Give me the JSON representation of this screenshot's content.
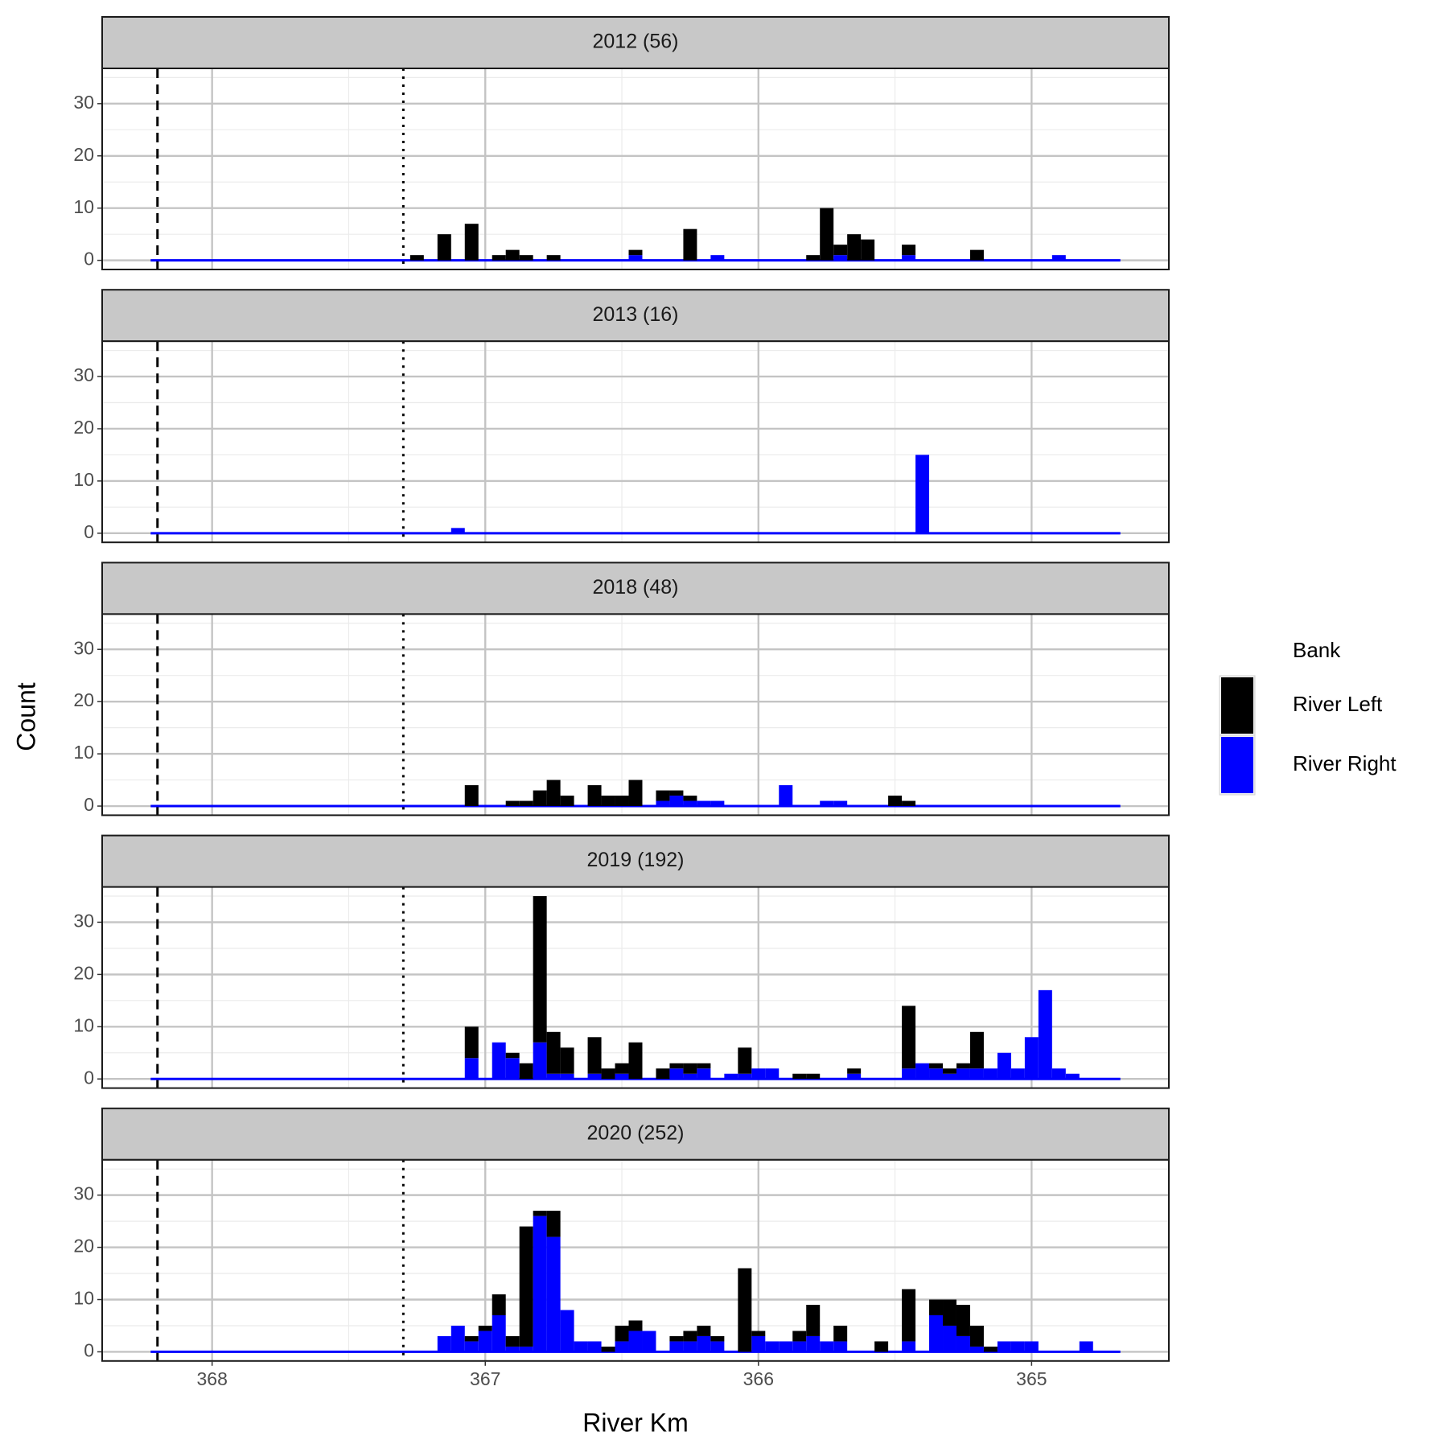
{
  "chart_data": {
    "type": "histogram",
    "x_label": "River Km",
    "y_label": "Count",
    "legend_title": "Bank",
    "xlim": [
      368.4025,
      364.4975
    ],
    "xticks": [
      368,
      367,
      366,
      365
    ],
    "ylim": [
      -1.75,
      36.75
    ],
    "yticks": [
      0,
      10,
      20,
      30
    ],
    "grid": true,
    "minor_grid": true,
    "vlines": [
      {
        "value": 368.2,
        "style": "dashed"
      },
      {
        "value": 367.3,
        "style": "dotted"
      }
    ],
    "bins": [
      368.225,
      368.175,
      368.125,
      368.075,
      368.025,
      367.975,
      367.925,
      367.875,
      367.825,
      367.775,
      367.725,
      367.675,
      367.625,
      367.575,
      367.525,
      367.475,
      367.425,
      367.375,
      367.325,
      367.275,
      367.225,
      367.175,
      367.125,
      367.075,
      367.025,
      366.975,
      366.925,
      366.875,
      366.825,
      366.775,
      366.725,
      366.675,
      366.625,
      366.575,
      366.525,
      366.475,
      366.425,
      366.375,
      366.325,
      366.275,
      366.225,
      366.175,
      366.125,
      366.075,
      366.025,
      365.975,
      365.925,
      365.875,
      365.825,
      365.775,
      365.725,
      365.675,
      365.625,
      365.575,
      365.525,
      365.475,
      365.425,
      365.375,
      365.325,
      365.275,
      365.225,
      365.175,
      365.125,
      365.075,
      365.025,
      364.975,
      364.925,
      364.875,
      364.825,
      364.775,
      364.725,
      364.675
    ],
    "facets": [
      {
        "title": "2012 (56)",
        "series": [
          {
            "name": "River Left",
            "color": "#000000",
            "values": [
              0,
              0,
              0,
              0,
              0,
              0,
              0,
              0,
              0,
              0,
              0,
              0,
              0,
              0,
              0,
              0,
              0,
              0,
              0,
              1,
              0,
              5,
              0,
              7,
              0,
              1,
              2,
              1,
              0,
              1,
              0,
              0,
              0,
              0,
              0,
              1,
              0,
              0,
              0,
              6,
              0,
              0,
              0,
              0,
              0,
              0,
              0,
              0,
              1,
              10,
              2,
              5,
              4,
              0,
              0,
              2,
              0,
              0,
              0,
              0,
              2,
              0,
              0,
              0,
              0,
              0,
              0,
              0,
              0,
              0,
              0
            ]
          },
          {
            "name": "River Right",
            "color": "#0000ff",
            "values": [
              0,
              0,
              0,
              0,
              0,
              0,
              0,
              0,
              0,
              0,
              0,
              0,
              0,
              0,
              0,
              0,
              0,
              0,
              0,
              0,
              0,
              0,
              0,
              0,
              0,
              0,
              0,
              0,
              0,
              0,
              0,
              0,
              0,
              0,
              0,
              1,
              0,
              0,
              0,
              0,
              0,
              1,
              0,
              0,
              0,
              0,
              0,
              0,
              0,
              0,
              1,
              0,
              0,
              0,
              0,
              1,
              0,
              0,
              0,
              0,
              0,
              0,
              0,
              0,
              0,
              0,
              1,
              0,
              0,
              0,
              0
            ]
          }
        ]
      },
      {
        "title": "2013 (16)",
        "series": [
          {
            "name": "River Left",
            "color": "#000000",
            "values": [
              0,
              0,
              0,
              0,
              0,
              0,
              0,
              0,
              0,
              0,
              0,
              0,
              0,
              0,
              0,
              0,
              0,
              0,
              0,
              0,
              0,
              0,
              0,
              0,
              0,
              0,
              0,
              0,
              0,
              0,
              0,
              0,
              0,
              0,
              0,
              0,
              0,
              0,
              0,
              0,
              0,
              0,
              0,
              0,
              0,
              0,
              0,
              0,
              0,
              0,
              0,
              0,
              0,
              0,
              0,
              0,
              0,
              0,
              0,
              0,
              0,
              0,
              0,
              0,
              0,
              0,
              0,
              0,
              0,
              0,
              0
            ]
          },
          {
            "name": "River Right",
            "color": "#0000ff",
            "values": [
              0,
              0,
              0,
              0,
              0,
              0,
              0,
              0,
              0,
              0,
              0,
              0,
              0,
              0,
              0,
              0,
              0,
              0,
              0,
              0,
              0,
              0,
              1,
              0,
              0,
              0,
              0,
              0,
              0,
              0,
              0,
              0,
              0,
              0,
              0,
              0,
              0,
              0,
              0,
              0,
              0,
              0,
              0,
              0,
              0,
              0,
              0,
              0,
              0,
              0,
              0,
              0,
              0,
              0,
              0,
              0,
              15,
              0,
              0,
              0,
              0,
              0,
              0,
              0,
              0,
              0,
              0,
              0,
              0,
              0,
              0
            ]
          }
        ]
      },
      {
        "title": "2018 (48)",
        "series": [
          {
            "name": "River Left",
            "color": "#000000",
            "values": [
              0,
              0,
              0,
              0,
              0,
              0,
              0,
              0,
              0,
              0,
              0,
              0,
              0,
              0,
              0,
              0,
              0,
              0,
              0,
              0,
              0,
              0,
              0,
              4,
              0,
              0,
              1,
              1,
              3,
              5,
              2,
              0,
              4,
              2,
              2,
              5,
              0,
              2,
              1,
              1,
              0,
              0,
              0,
              0,
              0,
              0,
              0,
              0,
              0,
              0,
              0,
              0,
              0,
              0,
              2,
              1,
              0,
              0,
              0,
              0,
              0,
              0,
              0,
              0,
              0,
              0,
              0,
              0,
              0,
              0,
              0
            ]
          },
          {
            "name": "River Right",
            "color": "#0000ff",
            "values": [
              0,
              0,
              0,
              0,
              0,
              0,
              0,
              0,
              0,
              0,
              0,
              0,
              0,
              0,
              0,
              0,
              0,
              0,
              0,
              0,
              0,
              0,
              0,
              0,
              0,
              0,
              0,
              0,
              0,
              0,
              0,
              0,
              0,
              0,
              0,
              0,
              0,
              1,
              2,
              1,
              1,
              1,
              0,
              0,
              0,
              0,
              4,
              0,
              0,
              1,
              1,
              0,
              0,
              0,
              0,
              0,
              0,
              0,
              0,
              0,
              0,
              0,
              0,
              0,
              0,
              0,
              0,
              0,
              0,
              0,
              0
            ]
          }
        ]
      },
      {
        "title": "2019 (192)",
        "series": [
          {
            "name": "River Left",
            "color": "#000000",
            "values": [
              0,
              0,
              0,
              0,
              0,
              0,
              0,
              0,
              0,
              0,
              0,
              0,
              0,
              0,
              0,
              0,
              0,
              0,
              0,
              0,
              0,
              0,
              0,
              6,
              0,
              0,
              1,
              3,
              28,
              8,
              5,
              0,
              7,
              2,
              2,
              7,
              0,
              2,
              1,
              2,
              1,
              0,
              0,
              5,
              0,
              0,
              0,
              1,
              1,
              0,
              0,
              1,
              0,
              0,
              0,
              12,
              0,
              1,
              1,
              1,
              7,
              0,
              0,
              0,
              0,
              0,
              0,
              0,
              0,
              0,
              0
            ]
          },
          {
            "name": "River Right",
            "color": "#0000ff",
            "values": [
              0,
              0,
              0,
              0,
              0,
              0,
              0,
              0,
              0,
              0,
              0,
              0,
              0,
              0,
              0,
              0,
              0,
              0,
              0,
              0,
              0,
              0,
              0,
              4,
              0,
              7,
              4,
              0,
              7,
              1,
              1,
              0,
              1,
              0,
              1,
              0,
              0,
              0,
              2,
              1,
              2,
              0,
              1,
              1,
              2,
              2,
              0,
              0,
              0,
              0,
              0,
              1,
              0,
              0,
              0,
              2,
              3,
              2,
              1,
              2,
              2,
              2,
              5,
              2,
              8,
              17,
              2,
              1,
              0,
              0,
              0
            ]
          }
        ]
      },
      {
        "title": "2020 (252)",
        "series": [
          {
            "name": "River Left",
            "color": "#000000",
            "values": [
              0,
              0,
              0,
              0,
              0,
              0,
              0,
              0,
              0,
              0,
              0,
              0,
              0,
              0,
              0,
              0,
              0,
              0,
              0,
              0,
              0,
              0,
              0,
              1,
              1,
              4,
              2,
              23,
              1,
              5,
              0,
              0,
              0,
              1,
              3,
              2,
              0,
              0,
              1,
              2,
              2,
              1,
              0,
              16,
              1,
              0,
              0,
              2,
              6,
              0,
              3,
              0,
              0,
              2,
              0,
              10,
              0,
              3,
              5,
              6,
              4,
              1,
              0,
              0,
              0,
              0,
              0,
              0,
              0,
              0,
              0
            ]
          },
          {
            "name": "River Right",
            "color": "#0000ff",
            "values": [
              0,
              0,
              0,
              0,
              0,
              0,
              0,
              0,
              0,
              0,
              0,
              0,
              0,
              0,
              0,
              0,
              0,
              0,
              0,
              0,
              0,
              3,
              5,
              2,
              4,
              7,
              1,
              1,
              26,
              22,
              8,
              2,
              2,
              0,
              2,
              4,
              4,
              0,
              2,
              2,
              3,
              2,
              0,
              0,
              3,
              2,
              2,
              2,
              3,
              2,
              2,
              0,
              0,
              0,
              0,
              2,
              0,
              7,
              5,
              3,
              1,
              0,
              2,
              2,
              2,
              0,
              0,
              0,
              2,
              0,
              0
            ]
          }
        ]
      }
    ]
  }
}
